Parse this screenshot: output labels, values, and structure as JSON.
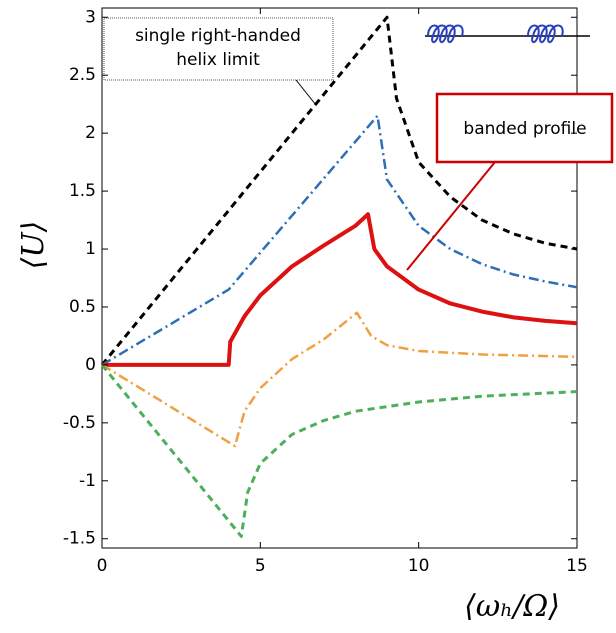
{
  "chart_data": {
    "type": "line",
    "xlabel": "⟨ωₕ/Ω⟩",
    "ylabel": "⟨U⟩",
    "xlim": [
      0,
      15
    ],
    "ylim": [
      -1.58,
      3.08
    ],
    "xticks": [
      0,
      5,
      10,
      15
    ],
    "yticks": [
      3,
      2.5,
      2,
      1.5,
      1,
      0.5,
      0,
      -0.5,
      -1,
      -1.5
    ],
    "series": [
      {
        "color": "#000000",
        "dash": "7,5",
        "width": 3,
        "x": [
          0,
          9,
          9.3,
          10,
          11,
          12,
          13,
          14,
          15
        ],
        "values": [
          0,
          3,
          2.3,
          1.75,
          1.45,
          1.25,
          1.13,
          1.05,
          1.0
        ]
      },
      {
        "color": "#2e6fb5",
        "dash": "10,4,2,4",
        "width": 2.5,
        "x": [
          0,
          4,
          8.7,
          9,
          10,
          11,
          12,
          13,
          14,
          15
        ],
        "values": [
          0,
          0.65,
          2.15,
          1.6,
          1.2,
          1.0,
          0.87,
          0.78,
          0.72,
          0.67
        ]
      },
      {
        "color": "#dd1111",
        "dash": "none",
        "width": 4,
        "x": [
          0,
          4,
          4.05,
          4.5,
          5,
          6,
          7,
          8,
          8.4,
          8.6,
          9,
          10,
          11,
          12,
          13,
          14,
          15
        ],
        "values": [
          0,
          0,
          0.2,
          0.42,
          0.6,
          0.85,
          1.03,
          1.2,
          1.3,
          1.0,
          0.85,
          0.65,
          0.53,
          0.46,
          0.41,
          0.38,
          0.36
        ]
      },
      {
        "color": "#f0a040",
        "dash": "10,4,2,4",
        "width": 2.5,
        "x": [
          0,
          4.2,
          4.5,
          5,
          6,
          7,
          8.05,
          8.5,
          9,
          10,
          12,
          15
        ],
        "values": [
          0,
          -0.7,
          -0.4,
          -0.2,
          0.05,
          0.22,
          0.45,
          0.25,
          0.17,
          0.12,
          0.09,
          0.07
        ]
      },
      {
        "color": "#4caf5a",
        "dash": "7,5",
        "width": 3,
        "x": [
          0,
          4.4,
          4.6,
          5,
          6,
          7,
          8,
          10,
          12,
          15
        ],
        "values": [
          0,
          -1.48,
          -1.1,
          -0.85,
          -0.6,
          -0.48,
          -0.4,
          -0.32,
          -0.27,
          -0.23
        ]
      }
    ],
    "annotations": [
      {
        "lines": [
          "single right-handed",
          "helix limit"
        ]
      },
      {
        "lines": [
          "banded profile"
        ]
      }
    ]
  }
}
